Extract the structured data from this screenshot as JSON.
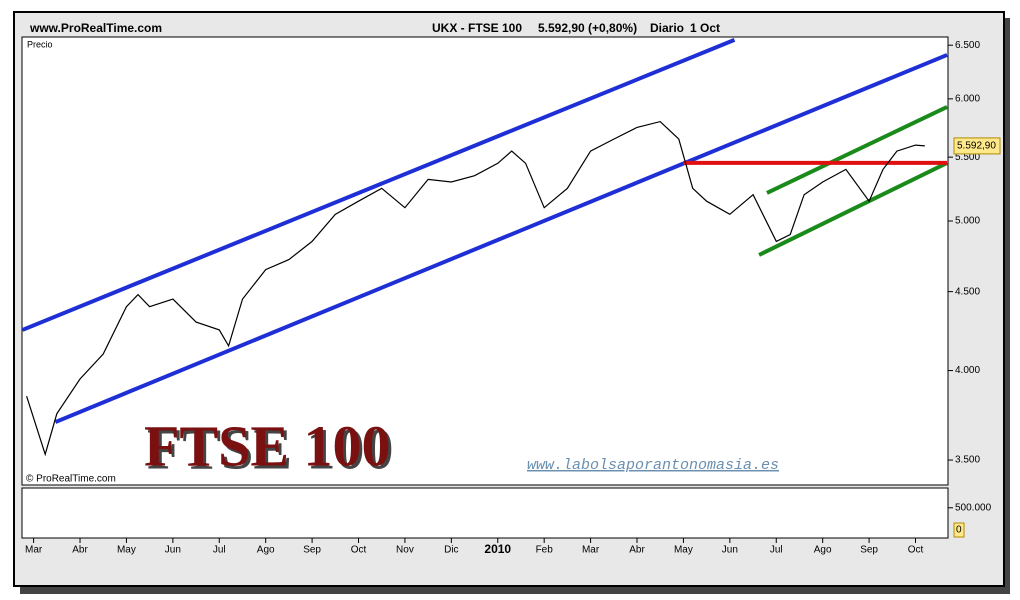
{
  "chart_data": [
    {
      "type": "line",
      "site": "www.ProRealTime.com",
      "title": "UKX - FTSE 100",
      "subtitle": "5.592,90 (+0,80%)",
      "period": "Diario",
      "date": "1 Oct",
      "y_label": "Precio",
      "copyright": "© ProRealTime.com",
      "annotations": [
        "FTSE 100",
        "www.labolsaporantonomasia.es"
      ],
      "log_scale": true,
      "xlim": [
        -0.25,
        19.7
      ],
      "xticks": [
        {
          "value": 0,
          "label": "Mar"
        },
        {
          "value": 1,
          "label": "Abr"
        },
        {
          "value": 2,
          "label": "May"
        },
        {
          "value": 3,
          "label": "Jun"
        },
        {
          "value": 4,
          "label": "Jul"
        },
        {
          "value": 5,
          "label": "Ago"
        },
        {
          "value": 6,
          "label": "Sep"
        },
        {
          "value": 7,
          "label": "Oct"
        },
        {
          "value": 8,
          "label": "Nov"
        },
        {
          "value": 9,
          "label": "Dic"
        },
        10,
        {
          "value": 11,
          "label": "Feb"
        },
        {
          "value": 12,
          "label": "Mar"
        },
        {
          "value": 13,
          "label": "Abr"
        },
        {
          "value": 14,
          "label": "May"
        },
        {
          "value": 15,
          "label": "Jun"
        },
        {
          "value": 16,
          "label": "Jul"
        },
        {
          "value": 17,
          "label": "Ago"
        },
        {
          "value": 18,
          "label": "Sep"
        },
        {
          "value": 19,
          "label": "Oct"
        }
      ],
      "bold_xtick": 10,
      "xtick_label_2010": "2010",
      "ylim": [
        3372,
        6580
      ],
      "yticks": [
        {
          "value": 3500,
          "label": "3.500"
        },
        {
          "value": 4000,
          "label": "4.000"
        },
        {
          "value": 4500,
          "label": "4.500"
        },
        {
          "value": 5000,
          "label": "5.000"
        },
        {
          "value": 5500,
          "label": "5.500"
        },
        {
          "value": 6000,
          "label": "6.000"
        },
        {
          "value": 6500,
          "label": "6.500"
        }
      ],
      "series": [
        {
          "color": "#000000",
          "x": [
            -0.15,
            0.25,
            0.5,
            1.0,
            1.5,
            2.0,
            2.25,
            2.5,
            3.0,
            3.5,
            4.0,
            4.2,
            4.5,
            5.0,
            5.5,
            6.0,
            6.5,
            7.0,
            7.5,
            8.0,
            8.5,
            9.0,
            9.5,
            10.0,
            10.3,
            10.6,
            11.0,
            11.5,
            12.0,
            12.5,
            13.0,
            13.5,
            13.9,
            14.2,
            14.5,
            15.0,
            15.5,
            16.0,
            16.3,
            16.6,
            17.0,
            17.5,
            18.0,
            18.3,
            18.6,
            19.0,
            19.2
          ],
          "values": [
            3850,
            3530,
            3750,
            3950,
            4100,
            4400,
            4480,
            4400,
            4450,
            4300,
            4250,
            4150,
            4450,
            4650,
            4720,
            4850,
            5050,
            5150,
            5250,
            5100,
            5320,
            5300,
            5350,
            5450,
            5550,
            5450,
            5100,
            5250,
            5550,
            5650,
            5750,
            5800,
            5650,
            5250,
            5150,
            5050,
            5200,
            4850,
            4900,
            5200,
            5300,
            5400,
            5150,
            5400,
            5550,
            5600,
            5593
          ]
        }
      ],
      "last_value": {
        "value": 5592.9,
        "label": "5.592,90"
      },
      "trendlines": [
        {
          "color": "#1f2fd6",
          "x": [
            -0.24,
            15.1
          ],
          "values": [
            4250,
            6552
          ]
        },
        {
          "color": "#1f2fd6",
          "x": [
            0.47,
            19.68
          ],
          "values": [
            3704,
            6406
          ]
        },
        {
          "color": "#1a8a1a",
          "x": [
            15.8,
            19.68
          ],
          "values": [
            5214,
            5928
          ]
        },
        {
          "color": "#1a8a1a",
          "x": [
            15.63,
            19.68
          ],
          "values": [
            4753,
            5453
          ]
        },
        {
          "color": "#e01010",
          "x": [
            14.0,
            19.68
          ],
          "values": [
            5453,
            5453
          ]
        }
      ]
    },
    {
      "type": "volume",
      "ylim": [
        0,
        900000
      ],
      "yticks": [
        {
          "value": 500000,
          "label": "500.000"
        }
      ],
      "last_value": 0
    }
  ]
}
